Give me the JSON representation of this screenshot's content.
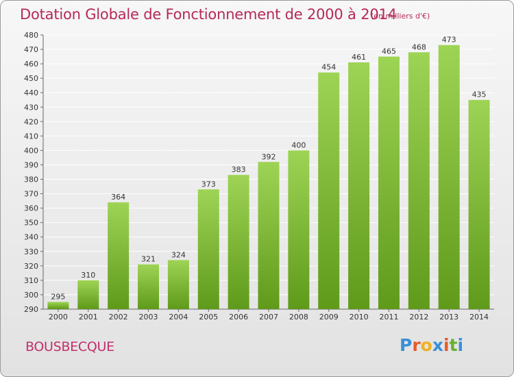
{
  "title": "Dotation Globale de Fonctionnement de 2000 à 2014",
  "unit": "(en milliers d'€)",
  "city": "BOUSBECQUE",
  "logo": {
    "text": "Proxiti",
    "letters": [
      "P",
      "r",
      "o",
      "x",
      "i",
      "t",
      "i"
    ],
    "colors": [
      "#3a8fd8",
      "#e85a2a",
      "#f0b020",
      "#3a8fd8",
      "#e85a2a",
      "#6ab030",
      "#3a8fd8"
    ]
  },
  "colors": {
    "title": "#b5285a",
    "bar_top": "#9ed455",
    "bar_bottom": "#5f9a1a",
    "grid": "#ffffff"
  },
  "chart_data": {
    "type": "bar",
    "categories": [
      "2000",
      "2001",
      "2002",
      "2003",
      "2004",
      "2005",
      "2006",
      "2007",
      "2008",
      "2009",
      "2010",
      "2011",
      "2012",
      "2013",
      "2014"
    ],
    "values": [
      295,
      310,
      364,
      321,
      324,
      373,
      383,
      392,
      400,
      454,
      461,
      465,
      468,
      473,
      435
    ],
    "ylim": [
      290,
      480
    ],
    "yticks": [
      290,
      300,
      310,
      320,
      330,
      340,
      350,
      360,
      370,
      380,
      390,
      400,
      410,
      420,
      430,
      440,
      450,
      460,
      470,
      480
    ],
    "grid": true,
    "data_labels": true
  }
}
